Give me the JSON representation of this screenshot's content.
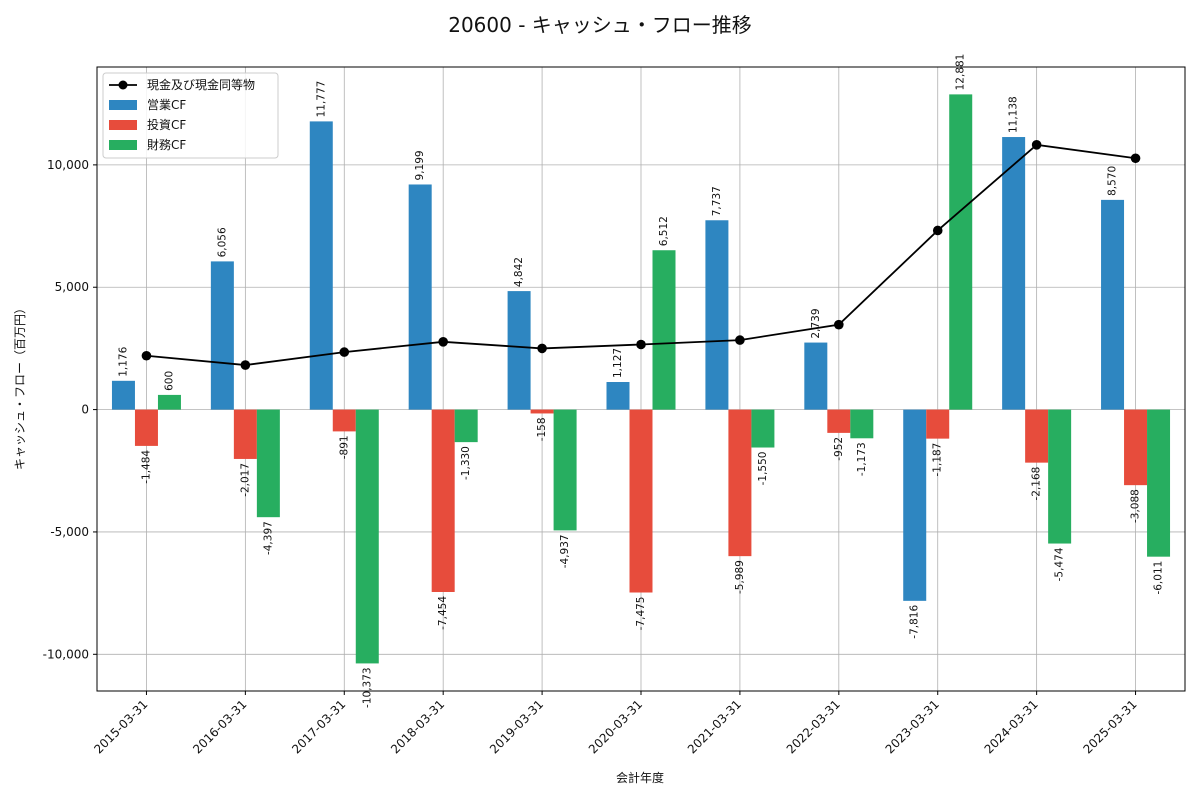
{
  "chart_data": {
    "type": "bar",
    "title": "20600 - キャッシュ・フロー推移",
    "xlabel": "会計年度",
    "ylabel": "キャッシュ・フロー（百万円）",
    "categories": [
      "2015-03-31",
      "2016-03-31",
      "2017-03-31",
      "2018-03-31",
      "2019-03-31",
      "2020-03-31",
      "2021-03-31",
      "2022-03-31",
      "2023-03-31",
      "2024-03-31",
      "2025-03-31"
    ],
    "ylim": [
      -11500,
      14000
    ],
    "yticks": [
      -10000,
      -5000,
      0,
      5000,
      10000
    ],
    "ytick_labels": [
      "-10,000",
      "-5,000",
      "0",
      "5,000",
      "10,000"
    ],
    "grid": true,
    "legend_position": "top-left",
    "series": [
      {
        "name": "営業CF",
        "kind": "bar",
        "color": "#2e86c1",
        "values": [
          1176,
          6056,
          11777,
          9199,
          4842,
          1127,
          7737,
          2739,
          -7816,
          11138,
          8570
        ],
        "labels": [
          "1,176",
          "6,056",
          "11,777",
          "9,199",
          "4,842",
          "1,127",
          "7,737",
          "2,739",
          "-7,816",
          "11,138",
          "8,570"
        ]
      },
      {
        "name": "投資CF",
        "kind": "bar",
        "color": "#e74c3c",
        "values": [
          -1484,
          -2017,
          -891,
          -7454,
          -158,
          -7475,
          -5989,
          -952,
          -1187,
          -2168,
          -3088
        ],
        "labels": [
          "-1,484",
          "-2,017",
          "-891",
          "-7,454",
          "-158",
          "-7,475",
          "-5,989",
          "-952",
          "-1,187",
          "-2,168",
          "-3,088"
        ]
      },
      {
        "name": "財務CF",
        "kind": "bar",
        "color": "#27ae60",
        "values": [
          600,
          -4397,
          -10373,
          -1330,
          -4937,
          6512,
          -1550,
          -1173,
          12881,
          -5474,
          -6011
        ],
        "labels": [
          "600",
          "-4,397",
          "-10,373",
          "-1,330",
          "-4,937",
          "6,512",
          "-1,550",
          "-1,173",
          "12,881",
          "-5,474",
          "-6,011"
        ]
      },
      {
        "name": "現金及び現金同等物",
        "kind": "line",
        "color": "#000000",
        "values": [
          2200,
          1820,
          2350,
          2770,
          2500,
          2660,
          2840,
          3470,
          7320,
          10820,
          10270
        ]
      }
    ]
  }
}
